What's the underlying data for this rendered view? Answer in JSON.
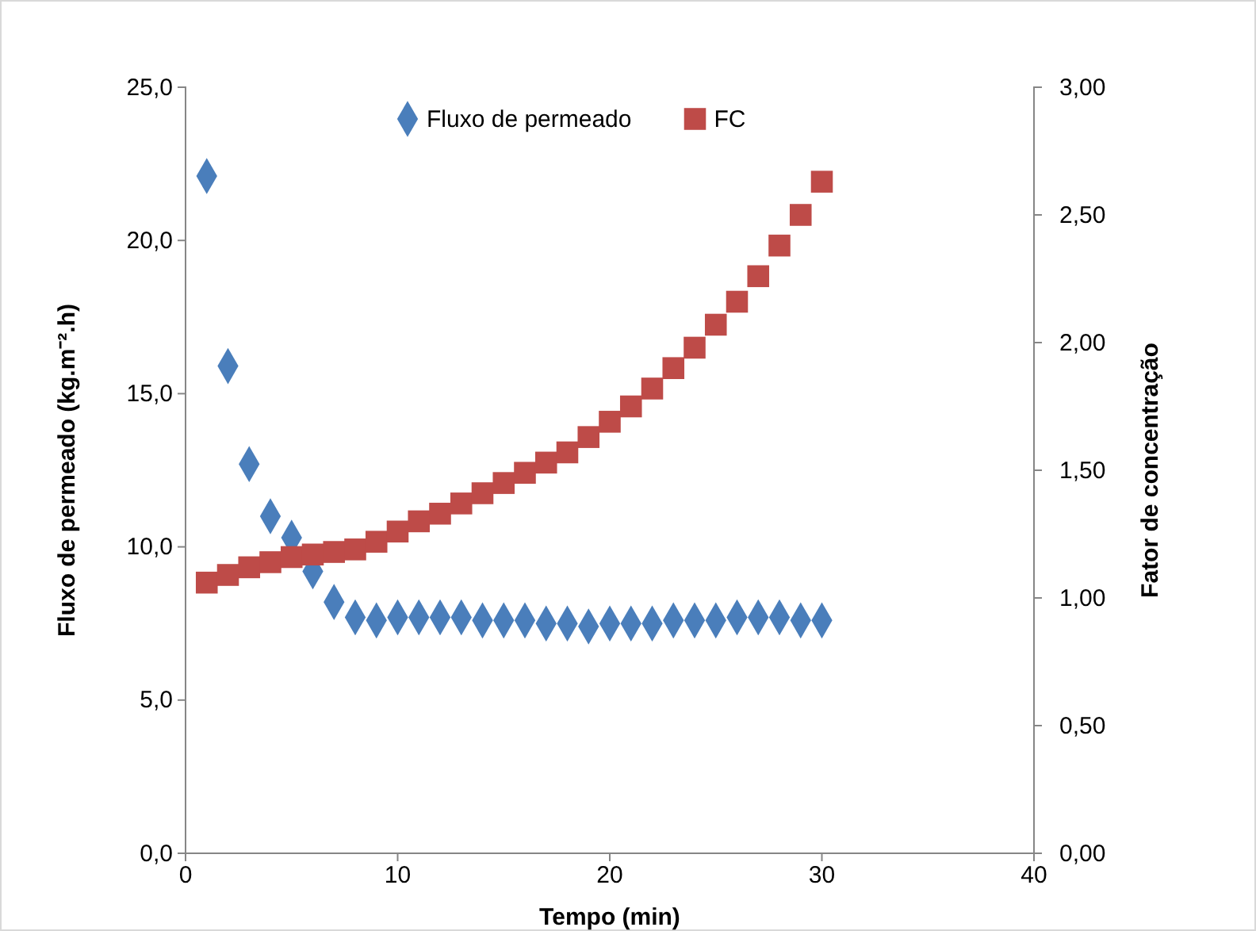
{
  "chart_data": {
    "type": "scatter",
    "xlabel": "Tempo (min)",
    "ylabel": "Fluxo de permeado (kg.m⁻².h)",
    "y2label": "Fator de concentração",
    "x": [
      1,
      2,
      3,
      4,
      5,
      6,
      7,
      8,
      9,
      10,
      11,
      12,
      13,
      14,
      15,
      16,
      17,
      18,
      19,
      20,
      21,
      22,
      23,
      24,
      25,
      26,
      27,
      28,
      29,
      30
    ],
    "series": [
      {
        "name": "Fluxo de permeado",
        "color": "#4a7ebb",
        "marker": "diamond",
        "values": [
          22.1,
          15.9,
          12.7,
          11.0,
          10.3,
          9.2,
          8.2,
          7.7,
          7.6,
          7.7,
          7.7,
          7.7,
          7.7,
          7.6,
          7.6,
          7.6,
          7.5,
          7.5,
          7.4,
          7.5,
          7.5,
          7.5,
          7.6,
          7.6,
          7.6,
          7.7,
          7.7,
          7.7,
          7.6,
          7.6
        ]
      },
      {
        "name": "FC",
        "color": "#be4b48",
        "marker": "square",
        "axis": "y2",
        "values": [
          1.06,
          1.09,
          1.12,
          1.14,
          1.16,
          1.17,
          1.18,
          1.19,
          1.22,
          1.26,
          1.3,
          1.33,
          1.37,
          1.41,
          1.45,
          1.49,
          1.53,
          1.57,
          1.63,
          1.69,
          1.75,
          1.82,
          1.9,
          1.98,
          2.07,
          2.16,
          2.26,
          2.38,
          2.5,
          2.63
        ]
      }
    ],
    "xlim": [
      0,
      40
    ],
    "xticks": [
      0,
      10,
      20,
      30,
      40
    ],
    "ylim": [
      0,
      25
    ],
    "yticks": [
      {
        "value": 0,
        "label": "0,0"
      },
      {
        "value": 5,
        "label": "5,0"
      },
      {
        "value": 10,
        "label": "10,0"
      },
      {
        "value": 15,
        "label": "15,0"
      },
      {
        "value": 20,
        "label": "20,0"
      },
      {
        "value": 25,
        "label": "25,0"
      }
    ],
    "y2lim": [
      0,
      3
    ],
    "y2ticks": [
      {
        "value": 0,
        "label": "0,00"
      },
      {
        "value": 0.5,
        "label": "0,50"
      },
      {
        "value": 1,
        "label": "1,00"
      },
      {
        "value": 1.5,
        "label": "1,50"
      },
      {
        "value": 2,
        "label": "2,00"
      },
      {
        "value": 2.5,
        "label": "2,50"
      },
      {
        "value": 3,
        "label": "3,00"
      }
    ],
    "grid": false,
    "legend": "top"
  }
}
